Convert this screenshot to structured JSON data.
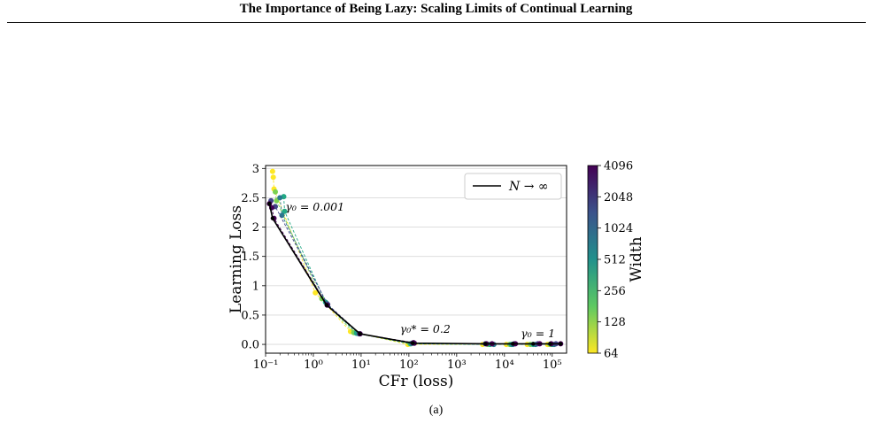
{
  "header": {
    "title": "The Importance of Being Lazy: Scaling Limits of Continual Learning"
  },
  "figure": {
    "subcaption": "(a)"
  },
  "chart_data": {
    "type": "scatter",
    "xlabel": "CFr (loss)",
    "ylabel": "Learning Loss",
    "x_scale": "log",
    "xlim": [
      0.1,
      200000
    ],
    "ylim": [
      -0.15,
      3.05
    ],
    "x_ticks": [
      0.1,
      1,
      10,
      100,
      1000,
      10000,
      100000
    ],
    "x_tick_labels": [
      "10⁻¹",
      "10⁰",
      "10¹",
      "10²",
      "10³",
      "10⁴",
      "10⁵"
    ],
    "y_ticks": [
      0,
      0.5,
      1,
      1.5,
      2,
      2.5,
      3
    ],
    "y_tick_labels": [
      "0.0",
      "0.5",
      "1",
      "1.5",
      "2",
      "2.5",
      "3"
    ],
    "grid": "horizontal",
    "legend": {
      "placement": "top-right",
      "entry": "N → ∞"
    },
    "annotations": [
      {
        "text": "γ₀ = 0.001",
        "x": 0.26,
        "y": 2.28
      },
      {
        "text": "γ₀* = 0.2",
        "x": 65,
        "y": 0.2
      },
      {
        "text": "γ₀ = 1",
        "x": 22000,
        "y": 0.12
      }
    ],
    "colorbar": {
      "label": "Width",
      "ticks": [
        64,
        128,
        256,
        512,
        1024,
        2048,
        4096
      ],
      "colors": [
        "#fde725",
        "#5ec962",
        "#21918c",
        "#3b528b",
        "#440154"
      ]
    },
    "limit_line": {
      "name": "N → ∞",
      "color": "#000000",
      "x": [
        0.12,
        0.14,
        1.9,
        9.5,
        120,
        4000,
        15000,
        40000,
        90000,
        150000
      ],
      "y": [
        2.4,
        2.15,
        0.67,
        0.18,
        0.02,
        0.01,
        0.01,
        0.01,
        0.01,
        0.01
      ]
    },
    "series": [
      {
        "name": "64",
        "color": "#fde725",
        "x": [
          0.14,
          0.145,
          0.15,
          1.1,
          6,
          95,
          3500,
          11000,
          30000,
          80000
        ],
        "y": [
          2.95,
          2.85,
          2.65,
          0.88,
          0.22,
          0.0,
          0.0,
          0.0,
          0.0,
          0.0
        ]
      },
      {
        "name": "128",
        "color": "#7ad151",
        "x": [
          0.16,
          0.17,
          1.5,
          7,
          105,
          4500,
          13000,
          35000,
          90000
        ],
        "y": [
          2.6,
          2.45,
          0.78,
          0.2,
          0.01,
          0.0,
          0.0,
          0.0,
          0.0
        ]
      },
      {
        "name": "256",
        "color": "#22a884",
        "x": [
          0.24,
          0.25,
          1.8,
          8,
          110,
          5000,
          14000,
          40000,
          100000
        ],
        "y": [
          2.52,
          2.27,
          0.72,
          0.19,
          0.01,
          0.0,
          0.0,
          0.0,
          0.0
        ]
      },
      {
        "name": "512",
        "color": "#2a788e",
        "x": [
          0.2,
          0.22,
          1.9,
          9,
          115,
          6000,
          15000,
          45000,
          110000
        ],
        "y": [
          2.5,
          2.2,
          0.7,
          0.18,
          0.02,
          0.0,
          0.0,
          0.0,
          0.0
        ]
      },
      {
        "name": "1024",
        "color": "#414487",
        "x": [
          0.13,
          0.16,
          2.0,
          9.5,
          120,
          4000,
          16000,
          50000,
          120000
        ],
        "y": [
          2.45,
          2.35,
          0.68,
          0.18,
          0.02,
          0.01,
          0.01,
          0.01,
          0.01
        ]
      },
      {
        "name": "4096",
        "color": "#440154",
        "x": [
          0.12,
          0.135,
          0.15,
          1.95,
          9.5,
          125,
          130,
          4200,
          5500,
          17000,
          55000,
          95000,
          150000
        ],
        "y": [
          2.4,
          2.33,
          2.15,
          0.67,
          0.18,
          0.03,
          0.02,
          0.01,
          0.01,
          0.01,
          0.01,
          0.01,
          0.01
        ]
      }
    ]
  }
}
